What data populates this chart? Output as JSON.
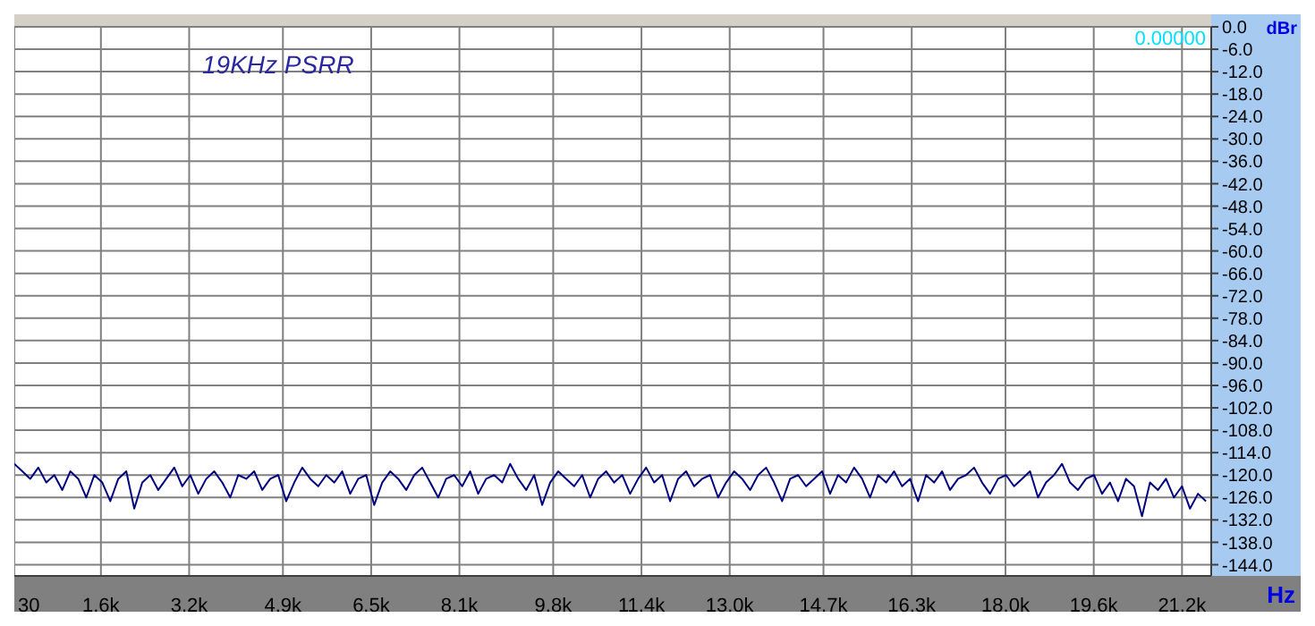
{
  "chart_data": {
    "type": "line",
    "title": "19KHz PSRR",
    "xlabel": "Hz",
    "ylabel": "dBr",
    "annotations": [
      "0.00000"
    ],
    "x": [
      30,
      175,
      320,
      465,
      610,
      755,
      900,
      1045,
      1190,
      1335,
      1480,
      1625,
      1770,
      1915,
      2060,
      2205,
      2350,
      2495,
      2640,
      2785,
      2930,
      3075,
      3220,
      3365,
      3510,
      3655,
      3800,
      3945,
      4090,
      4235,
      4380,
      4525,
      4670,
      4815,
      4960,
      5105,
      5250,
      5395,
      5540,
      5685,
      5830,
      5975,
      6120,
      6265,
      6410,
      6555,
      6700,
      6845,
      6990,
      7135,
      7280,
      7425,
      7570,
      7715,
      7860,
      8005,
      8150,
      8295,
      8440,
      8585,
      8730,
      8875,
      9020,
      9165,
      9310,
      9455,
      9600,
      9745,
      9890,
      10035,
      10180,
      10325,
      10470,
      10615,
      10760,
      10905,
      11050,
      11195,
      11340,
      11485,
      11630,
      11775,
      11920,
      12065,
      12210,
      12355,
      12500,
      12645,
      12790,
      12935,
      13080,
      13225,
      13370,
      13515,
      13660,
      13805,
      13950,
      14095,
      14240,
      14385,
      14530,
      14675,
      14820,
      14965,
      15110,
      15255,
      15400,
      15545,
      15690,
      15835,
      15980,
      16125,
      16270,
      16415,
      16560,
      16705,
      16850,
      16995,
      17140,
      17285,
      17430,
      17575,
      17720,
      17865,
      18010,
      18155,
      18300,
      18445,
      18590,
      18735,
      18880,
      19025,
      19170,
      19315,
      19460,
      19605,
      19750,
      19895,
      20040,
      20185,
      20330,
      20475,
      20620,
      20765,
      20910,
      21055,
      21200,
      21345,
      21490,
      21635
    ],
    "series": [
      {
        "color": "#000080",
        "values": [
          -117,
          -119,
          -121,
          -118,
          -122,
          -120,
          -124,
          -119,
          -121,
          -126,
          -120,
          -122,
          -127,
          -121,
          -119,
          -129,
          -122,
          -120,
          -124,
          -121,
          -118,
          -123,
          -120,
          -125,
          -121,
          -119,
          -122,
          -126,
          -120,
          -121,
          -119,
          -124,
          -121,
          -120,
          -127,
          -122,
          -118,
          -121,
          -123,
          -120,
          -122,
          -119,
          -125,
          -121,
          -120,
          -128,
          -122,
          -119,
          -121,
          -124,
          -120,
          -118,
          -122,
          -126,
          -121,
          -120,
          -123,
          -119,
          -125,
          -121,
          -120,
          -122,
          -117,
          -121,
          -124,
          -120,
          -128,
          -122,
          -119,
          -121,
          -123,
          -120,
          -126,
          -121,
          -119,
          -122,
          -120,
          -125,
          -121,
          -118,
          -122,
          -120,
          -127,
          -121,
          -119,
          -123,
          -121,
          -120,
          -126,
          -122,
          -119,
          -121,
          -124,
          -120,
          -118,
          -122,
          -127,
          -121,
          -120,
          -123,
          -121,
          -119,
          -125,
          -120,
          -122,
          -118,
          -121,
          -126,
          -120,
          -122,
          -119,
          -123,
          -121,
          -127,
          -120,
          -122,
          -119,
          -124,
          -121,
          -120,
          -118,
          -122,
          -125,
          -121,
          -120,
          -123,
          -121,
          -119,
          -126,
          -122,
          -120,
          -117,
          -122,
          -124,
          -121,
          -120,
          -125,
          -122,
          -127,
          -121,
          -123,
          -131,
          -122,
          -124,
          -121,
          -126,
          -123,
          -129,
          -125,
          -127
        ]
      }
    ],
    "xlim": [
      30,
      21730
    ],
    "xticks": [
      30,
      {
        "value": 1600,
        "label": "1.6k"
      },
      {
        "value": 3200,
        "label": "3.2k"
      },
      {
        "value": 4900,
        "label": "4.9k"
      },
      {
        "value": 6500,
        "label": "6.5k"
      },
      {
        "value": 8100,
        "label": "8.1k"
      },
      {
        "value": 9800,
        "label": "9.8k"
      },
      {
        "value": 11400,
        "label": "11.4k"
      },
      {
        "value": 13000,
        "label": "13.0k"
      },
      {
        "value": 14700,
        "label": "14.7k"
      },
      {
        "value": 16300,
        "label": "16.3k"
      },
      {
        "value": 18000,
        "label": "18.0k"
      },
      {
        "value": 19600,
        "label": "19.6k"
      },
      {
        "value": 21200,
        "label": "21.2k"
      }
    ],
    "ylim": [
      -147,
      0
    ],
    "yticks": [
      {
        "value": 0,
        "label": "0.0"
      },
      {
        "value": -6,
        "label": "-6.0"
      },
      {
        "value": -12,
        "label": "-12.0"
      },
      {
        "value": -18,
        "label": "-18.0"
      },
      {
        "value": -24,
        "label": "-24.0"
      },
      {
        "value": -30,
        "label": "-30.0"
      },
      {
        "value": -36,
        "label": "-36.0"
      },
      {
        "value": -42,
        "label": "-42.0"
      },
      {
        "value": -48,
        "label": "-48.0"
      },
      {
        "value": -54,
        "label": "-54.0"
      },
      {
        "value": -60,
        "label": "-60.0"
      },
      {
        "value": -66,
        "label": "-66.0"
      },
      {
        "value": -72,
        "label": "-72.0"
      },
      {
        "value": -78,
        "label": "-78.0"
      },
      {
        "value": -84,
        "label": "-84.0"
      },
      {
        "value": -90,
        "label": "-90.0"
      },
      {
        "value": -96,
        "label": "-96.0"
      },
      {
        "value": -102,
        "label": "-102.0"
      },
      {
        "value": -108,
        "label": "-108.0"
      },
      {
        "value": -114,
        "label": "-114.0"
      },
      {
        "value": -120,
        "label": "-120.0"
      },
      {
        "value": -126,
        "label": "-126.0"
      },
      {
        "value": -132,
        "label": "-132.0"
      },
      {
        "value": -138,
        "label": "-138.0"
      },
      {
        "value": -144,
        "label": "-144.0"
      }
    ],
    "grid": true,
    "legend": false,
    "marker": "none",
    "line_style": "solid"
  }
}
